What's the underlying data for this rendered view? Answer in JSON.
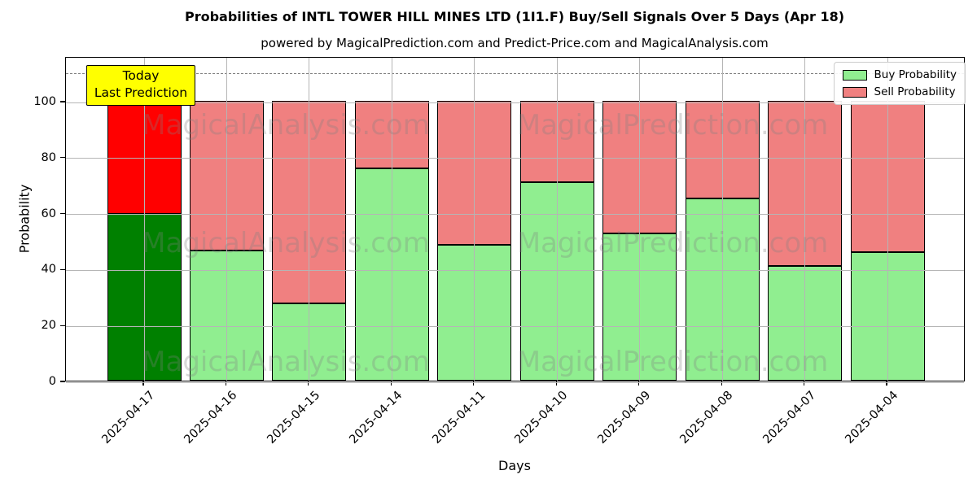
{
  "header": {
    "title": "Probabilities of INTL TOWER HILL MINES LTD (1I1.F) Buy/Sell Signals Over 5 Days (Apr 18)",
    "subtitle": "powered by MagicalPrediction.com and Predict-Price.com and MagicalAnalysis.com"
  },
  "annotation": {
    "line1": "Today",
    "line2": "Last Prediction",
    "bg_color": "#ffff00"
  },
  "legend": {
    "items": [
      {
        "label": "Buy Probability",
        "color": "#90ee90"
      },
      {
        "label": "Sell Probability",
        "color": "#f08080"
      }
    ]
  },
  "watermarks": {
    "left_text": "MagicalAnalysis.com",
    "right_text": "MagicalPrediction.com"
  },
  "chart_data": {
    "type": "bar",
    "stacked": true,
    "title": "Probabilities of INTL TOWER HILL MINES LTD (1I1.F) Buy/Sell Signals Over 5 Days (Apr 18)",
    "subtitle": "powered by MagicalPrediction.com and Predict-Price.com and MagicalAnalysis.com",
    "categories": [
      "2025-04-17",
      "2025-04-16",
      "2025-04-15",
      "2025-04-14",
      "2025-04-11",
      "2025-04-10",
      "2025-04-09",
      "2025-04-08",
      "2025-04-07",
      "2025-04-04"
    ],
    "series": [
      {
        "name": "Buy Probability",
        "values": [
          59.5,
          46.5,
          27.5,
          76,
          48.5,
          71,
          52.5,
          65,
          41,
          46
        ],
        "colors": [
          "#008000",
          "#90ee90",
          "#90ee90",
          "#90ee90",
          "#90ee90",
          "#90ee90",
          "#90ee90",
          "#90ee90",
          "#90ee90",
          "#90ee90"
        ]
      },
      {
        "name": "Sell Probability",
        "values": [
          40.5,
          53.5,
          72.5,
          24,
          51.5,
          29,
          47.5,
          35,
          59,
          54
        ],
        "colors": [
          "#ff0000",
          "#f08080",
          "#f08080",
          "#f08080",
          "#f08080",
          "#f08080",
          "#f08080",
          "#f08080",
          "#f08080",
          "#f08080"
        ]
      }
    ],
    "xlabel": "Days",
    "ylabel": "Probability",
    "yticks": [
      0,
      20,
      40,
      60,
      80,
      100
    ],
    "ylim": [
      0,
      116
    ],
    "reference_line": {
      "y": 110.5,
      "style": "dashed",
      "color": "#7f7f7f"
    },
    "grid": true,
    "legend_position": "upper right",
    "highlighted_bar": {
      "index": 0,
      "buy_color": "#008000",
      "sell_color": "#ff0000",
      "label": "Today Last Prediction"
    }
  }
}
